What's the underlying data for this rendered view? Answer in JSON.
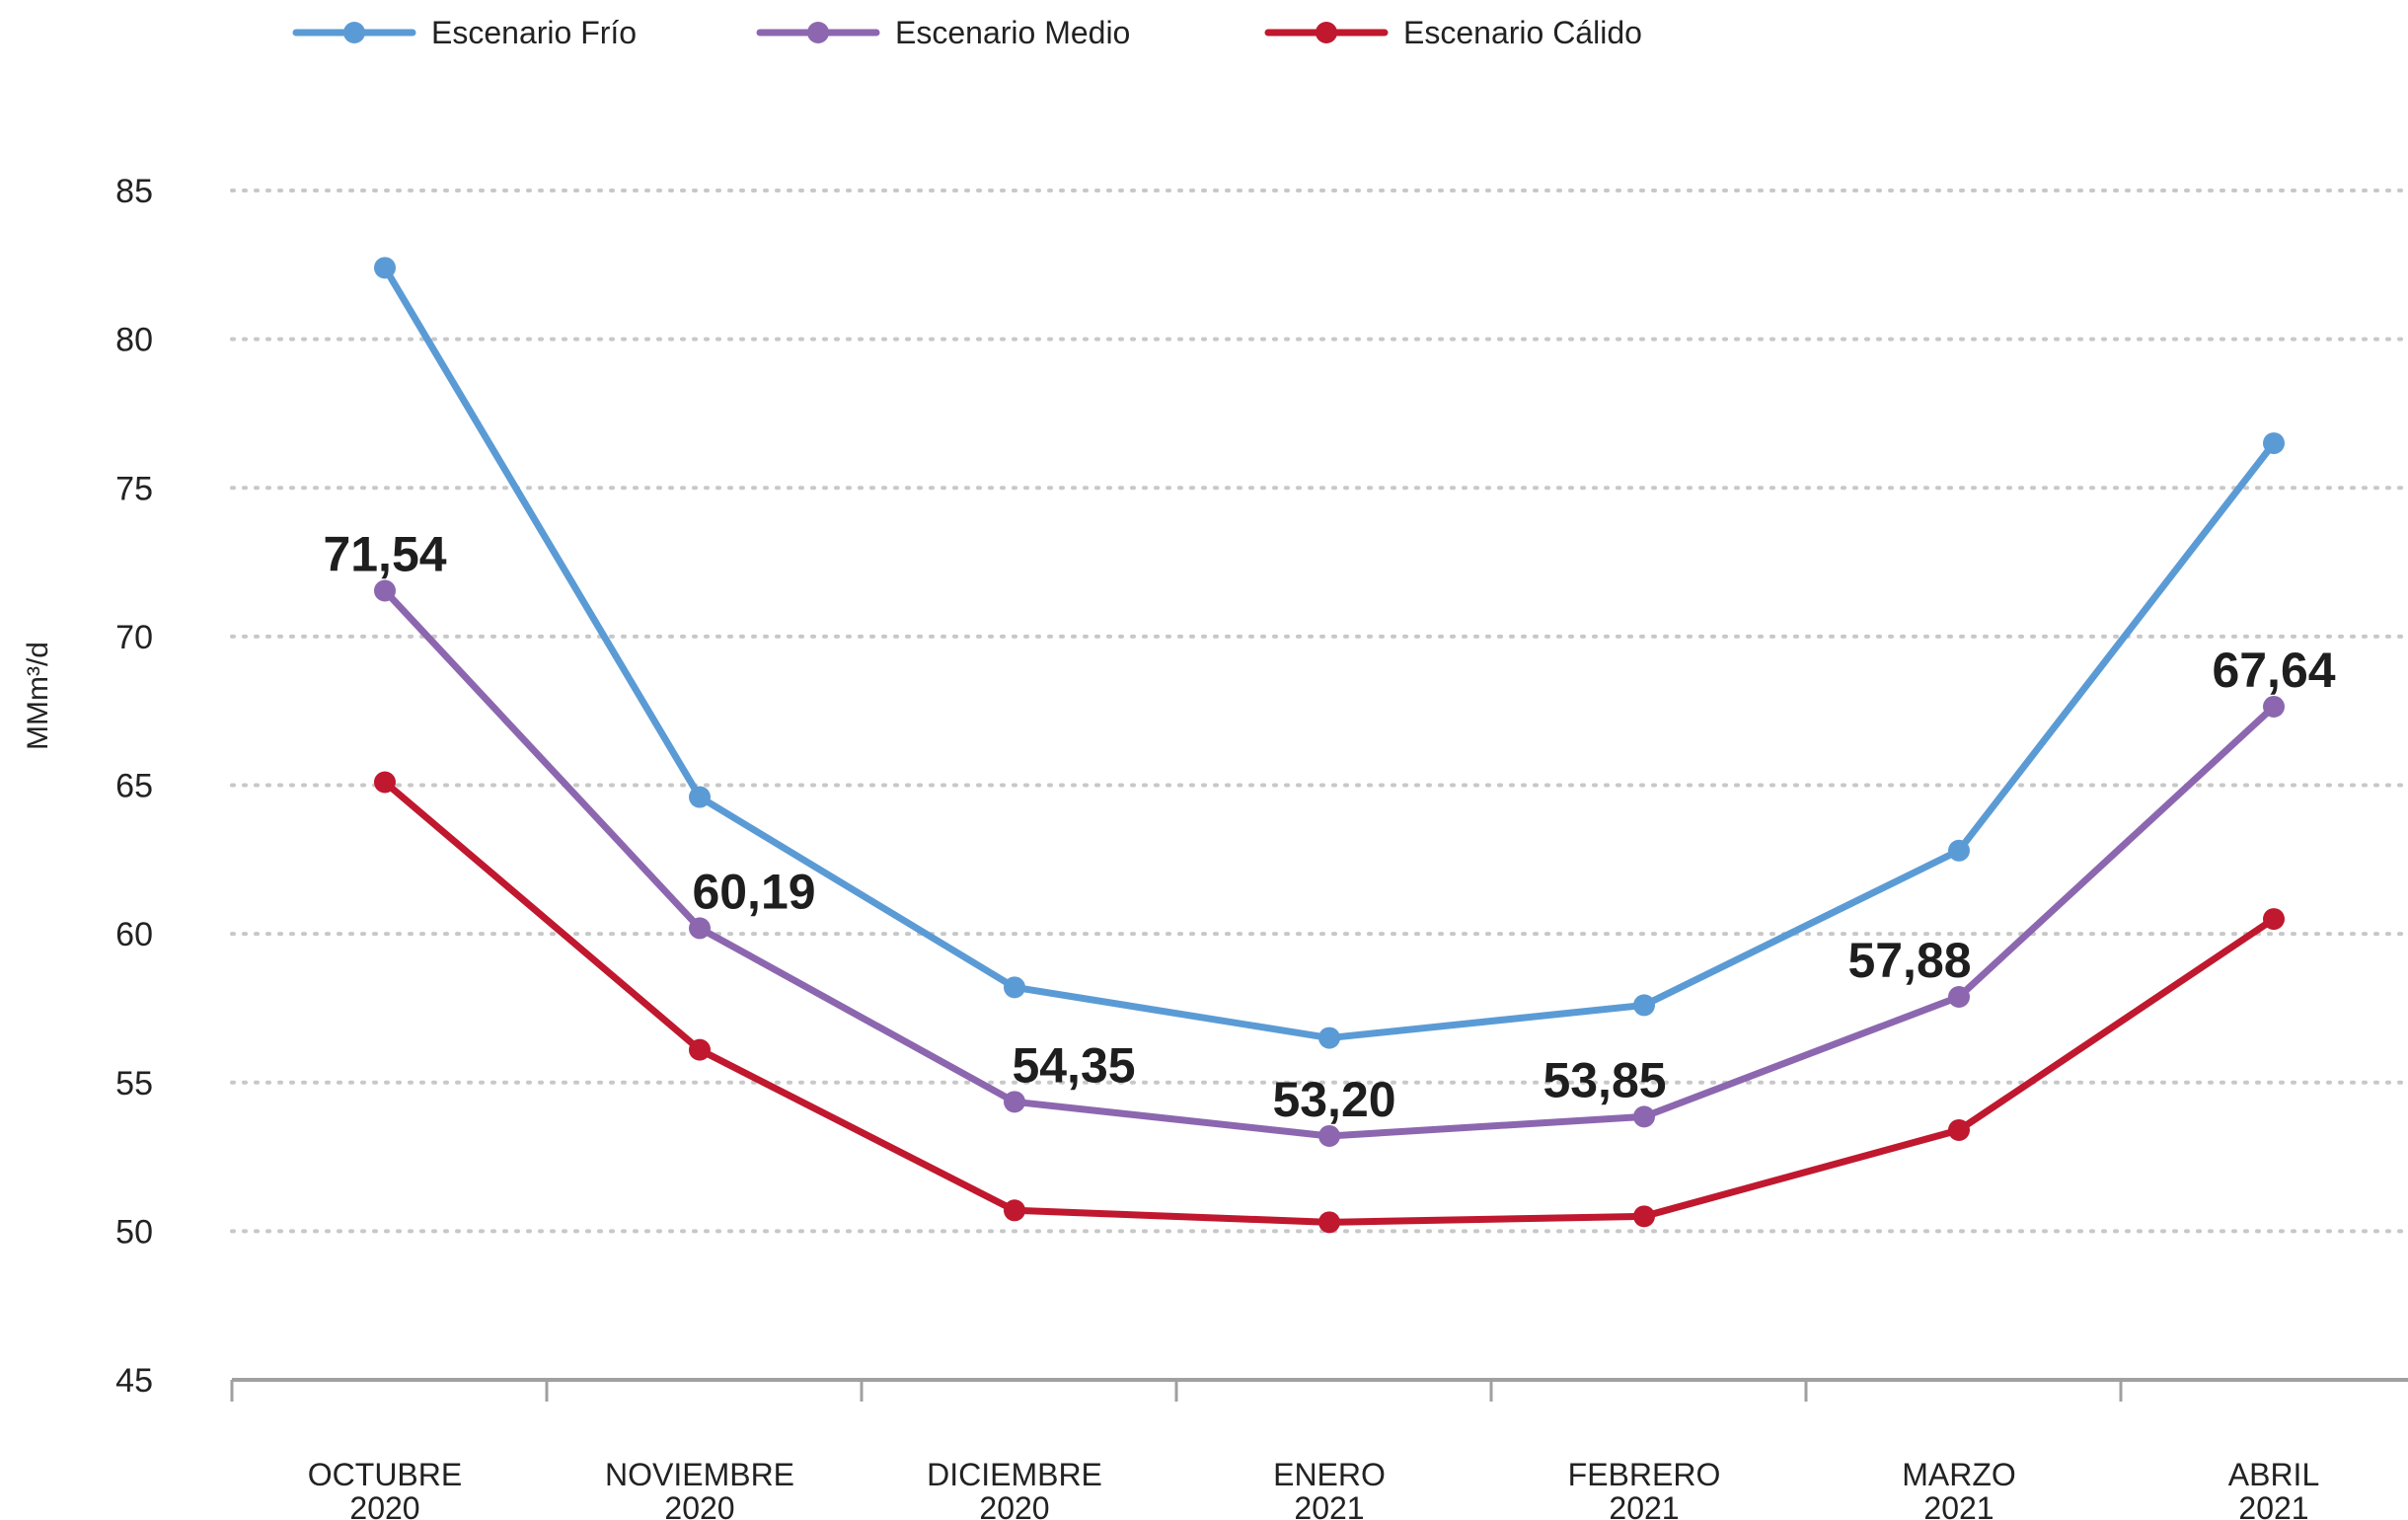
{
  "chart_data": {
    "type": "line",
    "categories": [
      [
        "OCTUBRE",
        "2020"
      ],
      [
        "NOVIEMBRE",
        "2020"
      ],
      [
        "DICIEMBRE",
        "2020"
      ],
      [
        "ENERO",
        "2021"
      ],
      [
        "FEBRERO",
        "2021"
      ],
      [
        "MARZO",
        "2021"
      ],
      [
        "ABRIL",
        "2021"
      ]
    ],
    "series": [
      {
        "name": "Escenario Frío",
        "color": "#5b9bd5",
        "values": [
          82.4,
          64.6,
          58.2,
          56.5,
          57.6,
          62.8,
          76.5
        ]
      },
      {
        "name": "Escenario Medio",
        "color": "#8c67b0",
        "values": [
          71.54,
          60.19,
          54.35,
          53.2,
          53.85,
          57.88,
          67.64
        ]
      },
      {
        "name": "Escenario Cálido",
        "color": "#c0182e",
        "values": [
          65.1,
          56.1,
          50.7,
          50.3,
          50.5,
          53.4,
          60.5
        ]
      }
    ],
    "data_labels": {
      "series": "Escenario Medio",
      "texts": [
        "71,54",
        "60,19",
        "54,35",
        "53,20",
        "53,85",
        "57,88",
        "67,64"
      ]
    },
    "title": "",
    "xlabel": "",
    "ylabel": "MMm³/d",
    "ylim": [
      45,
      85
    ],
    "yticks": [
      45,
      50,
      55,
      60,
      65,
      70,
      75,
      80,
      85
    ],
    "grid": "horizontal dotted",
    "legend_position": "top-left"
  }
}
